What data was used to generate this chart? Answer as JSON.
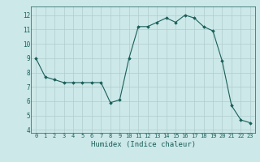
{
  "x": [
    0,
    1,
    2,
    3,
    4,
    5,
    6,
    7,
    8,
    9,
    10,
    11,
    12,
    13,
    14,
    15,
    16,
    17,
    18,
    19,
    20,
    21,
    22,
    23
  ],
  "y": [
    9.0,
    7.7,
    7.5,
    7.3,
    7.3,
    7.3,
    7.3,
    7.3,
    5.9,
    6.1,
    9.0,
    11.2,
    11.2,
    11.5,
    11.8,
    11.5,
    12.0,
    11.8,
    11.2,
    10.9,
    8.8,
    5.7,
    4.7,
    4.5
  ],
  "line_color": "#1a5f5a",
  "marker_color": "#1a5f5a",
  "background_color": "#cce8e8",
  "grid_color": "#b0cccc",
  "axis_color": "#1a5f5a",
  "xlabel": "Humidex (Indice chaleur)",
  "ylim": [
    3.8,
    12.6
  ],
  "xlim": [
    -0.5,
    23.5
  ],
  "yticks": [
    4,
    5,
    6,
    7,
    8,
    9,
    10,
    11,
    12
  ],
  "xticks": [
    0,
    1,
    2,
    3,
    4,
    5,
    6,
    7,
    8,
    9,
    10,
    11,
    12,
    13,
    14,
    15,
    16,
    17,
    18,
    19,
    20,
    21,
    22,
    23
  ],
  "figsize": [
    3.2,
    2.0
  ],
  "dpi": 100
}
